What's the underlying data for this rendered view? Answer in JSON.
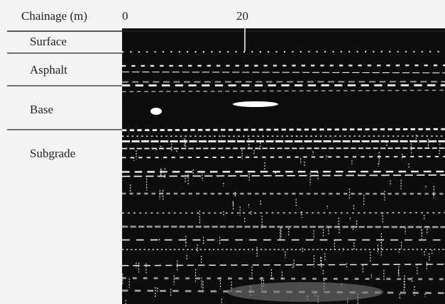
{
  "axis": {
    "label": "Chainage (m)",
    "ticks": [
      "0",
      "20"
    ]
  },
  "layers": [
    "Surface",
    "Asphalt",
    "Base",
    "Subgrade"
  ]
}
